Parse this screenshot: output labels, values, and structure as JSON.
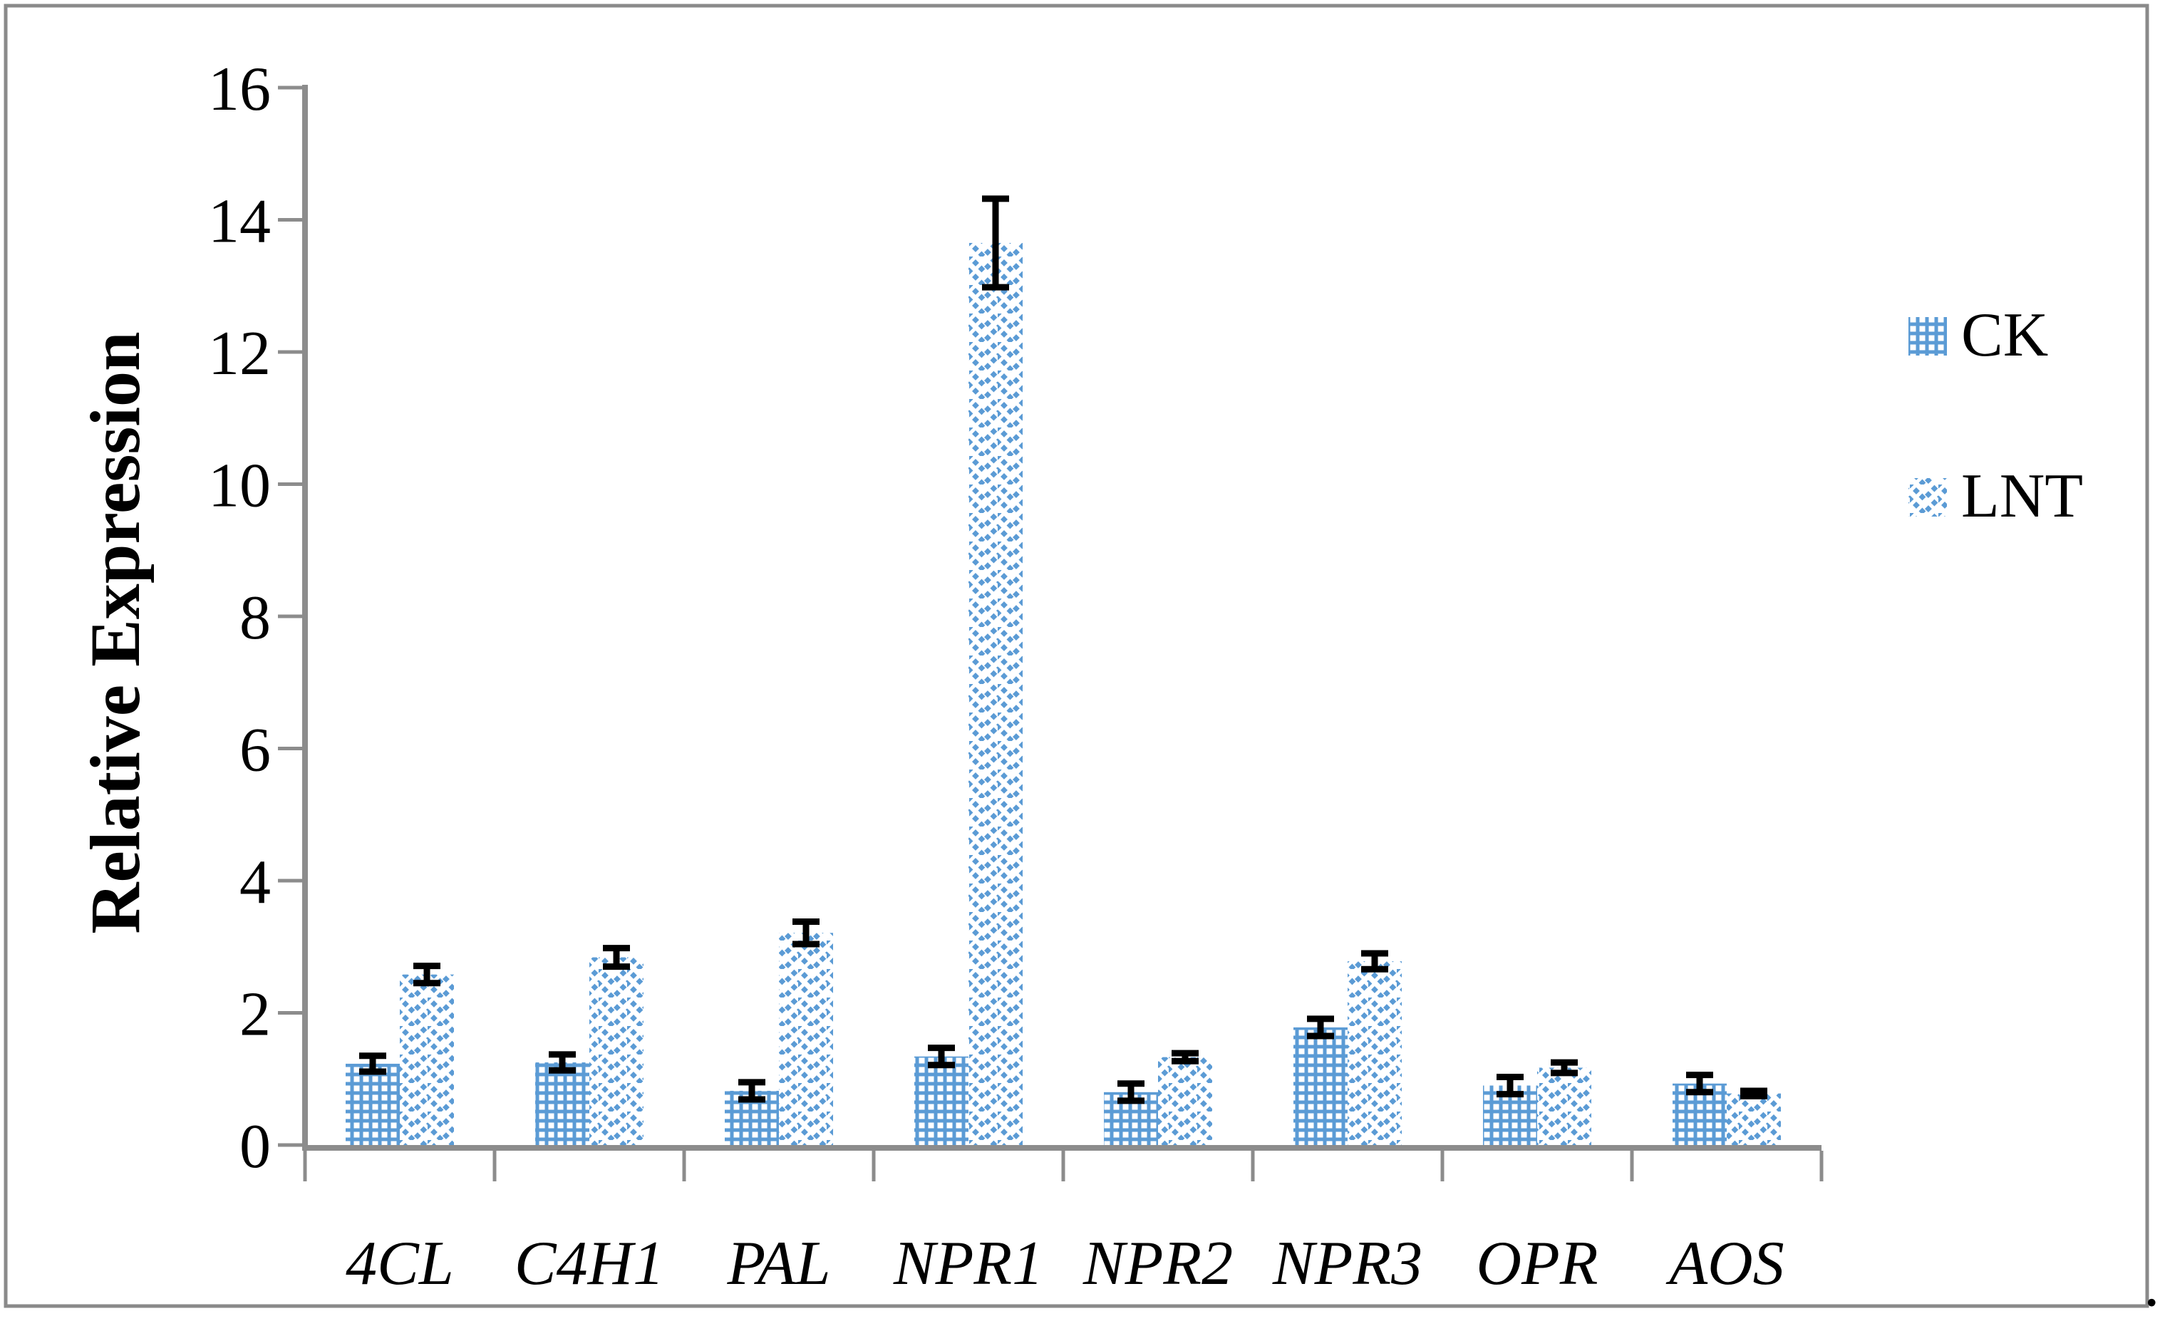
{
  "figure": {
    "trailing_period": ".",
    "frame_color": "#8A8A8A"
  },
  "chart_data": {
    "type": "bar",
    "title": "",
    "xlabel": "",
    "ylabel": "Relative Expression",
    "categories": [
      "4CL",
      "C4H1",
      "PAL",
      "NPR1",
      "NPR2",
      "NPR3",
      "OPR",
      "AOS"
    ],
    "series": [
      {
        "name": "CK",
        "pattern": "dotted-grid",
        "values": [
          1.23,
          1.25,
          0.82,
          1.34,
          0.8,
          1.78,
          0.9,
          0.93
        ],
        "errors": [
          0.12,
          0.12,
          0.13,
          0.13,
          0.13,
          0.13,
          0.13,
          0.13
        ]
      },
      {
        "name": "LNT",
        "pattern": "zigzag-weave",
        "values": [
          2.58,
          2.84,
          3.21,
          13.65,
          1.33,
          2.78,
          1.17,
          0.78
        ],
        "errors": [
          0.13,
          0.14,
          0.17,
          0.67,
          0.06,
          0.12,
          0.08,
          0.04
        ]
      }
    ],
    "ylim": [
      0,
      16
    ],
    "y_ticks": [
      0,
      2,
      4,
      6,
      8,
      10,
      12,
      14,
      16
    ],
    "grid": false,
    "legend_position": "right",
    "bar_color": "#5B9BD5",
    "axis_color": "#8C8C8C",
    "error_color": "#000000"
  }
}
